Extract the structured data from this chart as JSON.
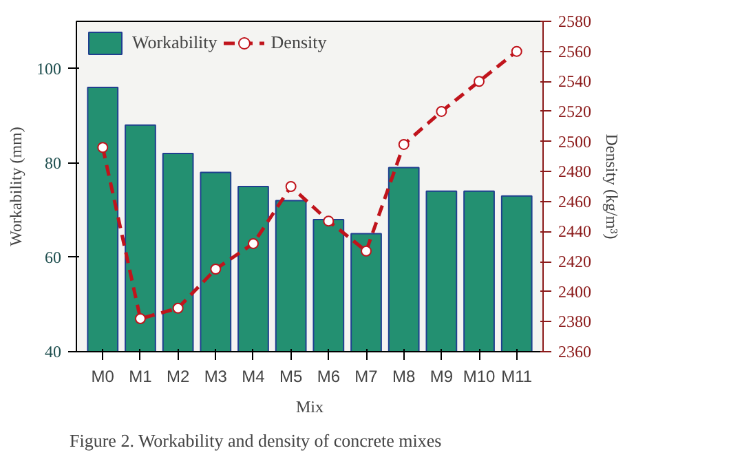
{
  "chart_data": {
    "type": "bar",
    "xlabel": "Mix",
    "ylabel": "Workability (mm)",
    "y2label": "Density (kg/m³)",
    "categories": [
      "M0",
      "M1",
      "M2",
      "M3",
      "M4",
      "M5",
      "M6",
      "M7",
      "M8",
      "M9",
      "M10",
      "M11"
    ],
    "series": [
      {
        "name": "Workability",
        "color": "#239071",
        "values": [
          96,
          88,
          82,
          78,
          75,
          72,
          68,
          65,
          79,
          74,
          74,
          73
        ]
      },
      {
        "name": "Density",
        "type": "line",
        "axis": "y2",
        "color": "#c0141c",
        "marker": "circle",
        "line_style": "dashed",
        "values": [
          2496,
          2382,
          2389,
          2415,
          2432,
          2470,
          2447,
          2427,
          2498,
          2520,
          2540,
          2560
        ]
      }
    ],
    "ylim": [
      40,
      110
    ],
    "yticks": [
      40,
      60,
      80,
      100
    ],
    "y2lim": [
      2360,
      2580
    ],
    "y2ticks": [
      2360,
      2380,
      2400,
      2420,
      2440,
      2460,
      2480,
      2500,
      2520,
      2540,
      2560,
      2580
    ],
    "legend": "top left",
    "grid": false,
    "annotations": [
      "Figure 2. Workability and density of concrete mixes"
    ]
  }
}
